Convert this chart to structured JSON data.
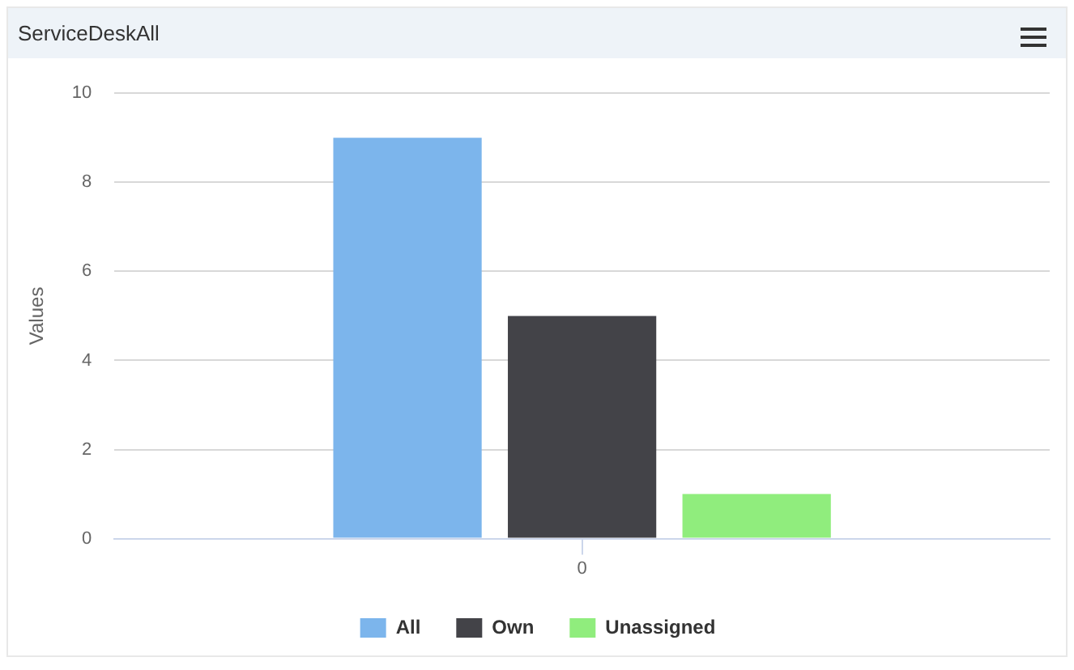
{
  "chart_data": {
    "type": "bar",
    "title": "ServiceDeskAll",
    "ylabel": "Values",
    "categories": [
      "0"
    ],
    "series": [
      {
        "name": "All",
        "color": "#7cb5ec",
        "values": [
          9
        ]
      },
      {
        "name": "Own",
        "color": "#434348",
        "values": [
          5
        ]
      },
      {
        "name": "Unassigned",
        "color": "#90ed7d",
        "values": [
          1
        ]
      }
    ],
    "ylim": [
      0,
      10
    ],
    "yticks": [
      0,
      2,
      4,
      6,
      8,
      10
    ],
    "grid": "y",
    "legend": "bottom"
  }
}
